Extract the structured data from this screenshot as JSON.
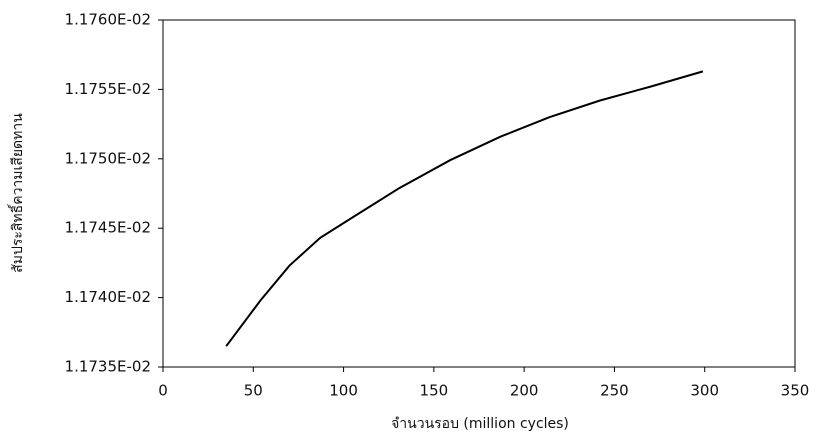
{
  "chart_data": {
    "type": "line",
    "x_label": "จำนวนรอบ (million cycles)",
    "y_label": "สัมประสิทธิ์ความเสียดทาน",
    "x": [
      35,
      54,
      70,
      87,
      104,
      131,
      159,
      187,
      214,
      242,
      270,
      299
    ],
    "series": [
      {
        "color": "#000000",
        "values": [
          0.0117365,
          0.0117398,
          0.0117423,
          0.0117443,
          0.0117457,
          0.0117479,
          0.0117499,
          0.0117516,
          0.011753,
          0.0117542,
          0.0117552,
          0.0117563
        ]
      }
    ],
    "xlim": [
      0,
      350
    ],
    "xticks": [
      0,
      50,
      100,
      150,
      200,
      250,
      300,
      350
    ],
    "ylim": [
      0.011735,
      0.01176
    ],
    "yticks": [
      {
        "value": 0.011735,
        "label": "1.1735E-02"
      },
      {
        "value": 0.01174,
        "label": "1.1740E-02"
      },
      {
        "value": 0.011745,
        "label": "1.1745E-02"
      },
      {
        "value": 0.01175,
        "label": "1.1750E-02"
      },
      {
        "value": 0.011755,
        "label": "1.1755E-02"
      },
      {
        "value": 0.01176,
        "label": "1.1760E-02"
      }
    ],
    "grid": false
  }
}
